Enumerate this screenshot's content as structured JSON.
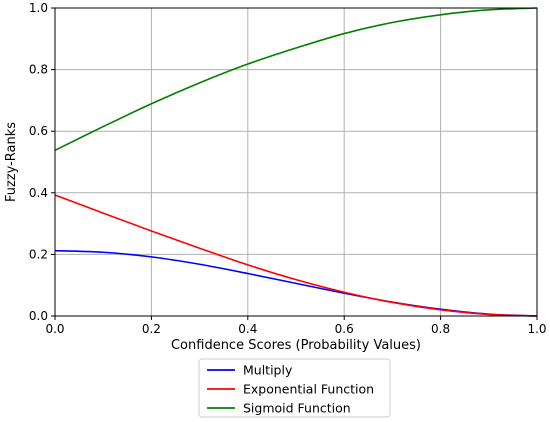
{
  "chart_data": {
    "type": "line",
    "title": "",
    "xlabel": "Confidence Scores (Probability Values)",
    "ylabel": "Fuzzy-Ranks",
    "xlim": [
      0.0,
      1.0
    ],
    "ylim": [
      0.0,
      1.0
    ],
    "x_ticks": [
      "0.0",
      "0.2",
      "0.4",
      "0.6",
      "0.8",
      "1.0"
    ],
    "y_ticks": [
      "0.0",
      "0.2",
      "0.4",
      "0.6",
      "0.8",
      "1.0"
    ],
    "grid": true,
    "legend_position": "bottom-center, outside plot",
    "x": [
      0.0,
      0.1,
      0.2,
      0.3,
      0.4,
      0.5,
      0.6,
      0.7,
      0.8,
      0.9,
      1.0
    ],
    "series": [
      {
        "name": "Multiply",
        "color": "#0000ff",
        "values": [
          0.212,
          0.207,
          0.192,
          0.168,
          0.138,
          0.106,
          0.074,
          0.045,
          0.022,
          0.006,
          0.0
        ]
      },
      {
        "name": "Exponential Function",
        "color": "#ff0000",
        "values": [
          0.393,
          0.334,
          0.276,
          0.22,
          0.166,
          0.118,
          0.077,
          0.044,
          0.02,
          0.005,
          0.0
        ]
      },
      {
        "name": "Sigmoid Function",
        "color": "#008000",
        "values": [
          0.538,
          0.615,
          0.689,
          0.757,
          0.818,
          0.87,
          0.917,
          0.953,
          0.978,
          0.994,
          1.0
        ]
      }
    ]
  }
}
